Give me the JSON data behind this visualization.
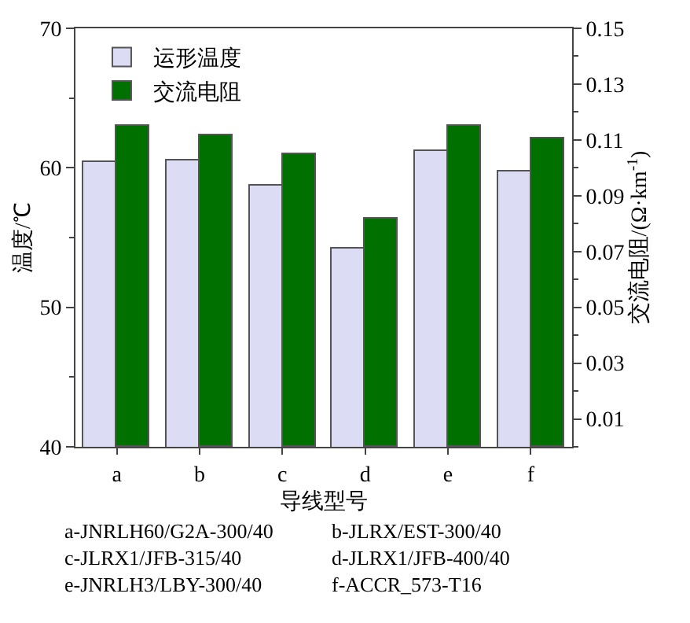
{
  "chart_data": {
    "type": "bar",
    "xlabel": "导线型号",
    "ylabel": "温度/℃",
    "y2label": "交流电阻/(Ω·km$^{-1}$)",
    "categories": [
      "a",
      "b",
      "c",
      "d",
      "e",
      "f"
    ],
    "series": [
      {
        "name": "运形温度",
        "color": "#dcdcf5",
        "values": [
          60.4,
          60.5,
          58.7,
          54.2,
          61.2,
          59.7
        ]
      },
      {
        "name": "交流电阻",
        "color": "#007000",
        "axis": "y2",
        "values": [
          0.115,
          0.1115,
          0.105,
          0.082,
          0.115,
          0.1105
        ]
      }
    ],
    "ylim": [
      40,
      70
    ],
    "yticks": [
      40,
      50,
      60,
      70
    ],
    "y2lim": [
      0,
      0.15
    ],
    "y2ticks": [
      0.01,
      0.03,
      0.05,
      0.07,
      0.09,
      0.11,
      0.13,
      0.15
    ],
    "legend": "top left",
    "annotations": [
      "a-JNRLH60/G2A-300/40",
      "b-JLRX/EST-300/40",
      "c-JLRX1/JFB-315/40",
      "d-JLRX1/JFB-400/40",
      "e-JNRLH3/LBY-300/40",
      "f-ACCR_573-T16"
    ]
  }
}
